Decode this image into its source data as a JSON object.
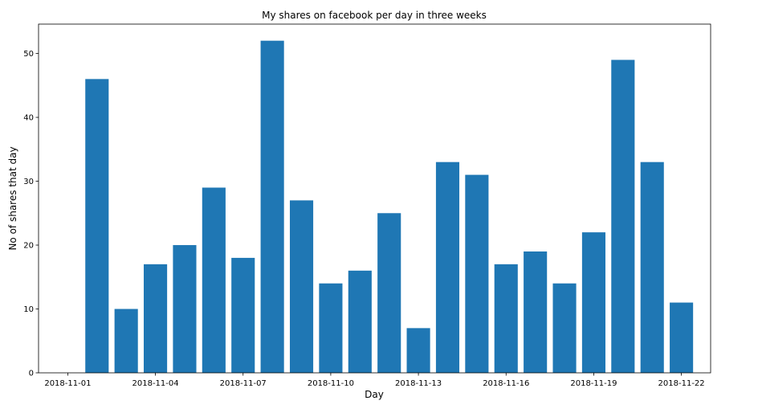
{
  "chart_data": {
    "type": "bar",
    "title": "My shares on facebook per day in three weeks",
    "xlabel": "Day",
    "ylabel": "No of shares that day",
    "x": [
      "2018-11-02",
      "2018-11-03",
      "2018-11-04",
      "2018-11-05",
      "2018-11-06",
      "2018-11-07",
      "2018-11-08",
      "2018-11-09",
      "2018-11-10",
      "2018-11-11",
      "2018-11-12",
      "2018-11-13",
      "2018-11-14",
      "2018-11-15",
      "2018-11-16",
      "2018-11-17",
      "2018-11-18",
      "2018-11-19",
      "2018-11-20",
      "2018-11-21",
      "2018-11-22"
    ],
    "values": [
      46,
      10,
      17,
      20,
      29,
      18,
      52,
      27,
      14,
      16,
      25,
      7,
      33,
      31,
      17,
      19,
      14,
      22,
      49,
      33,
      11
    ],
    "xlim": [
      "2018-10-31",
      "2018-11-23"
    ],
    "ylim": [
      0,
      54.6
    ],
    "xticks": [
      "2018-11-01",
      "2018-11-04",
      "2018-11-07",
      "2018-11-10",
      "2018-11-13",
      "2018-11-16",
      "2018-11-19",
      "2018-11-22"
    ],
    "yticks": [
      0,
      10,
      20,
      30,
      40,
      50
    ],
    "bar_color": "#1f77b4",
    "grid": false,
    "legend": "none"
  }
}
